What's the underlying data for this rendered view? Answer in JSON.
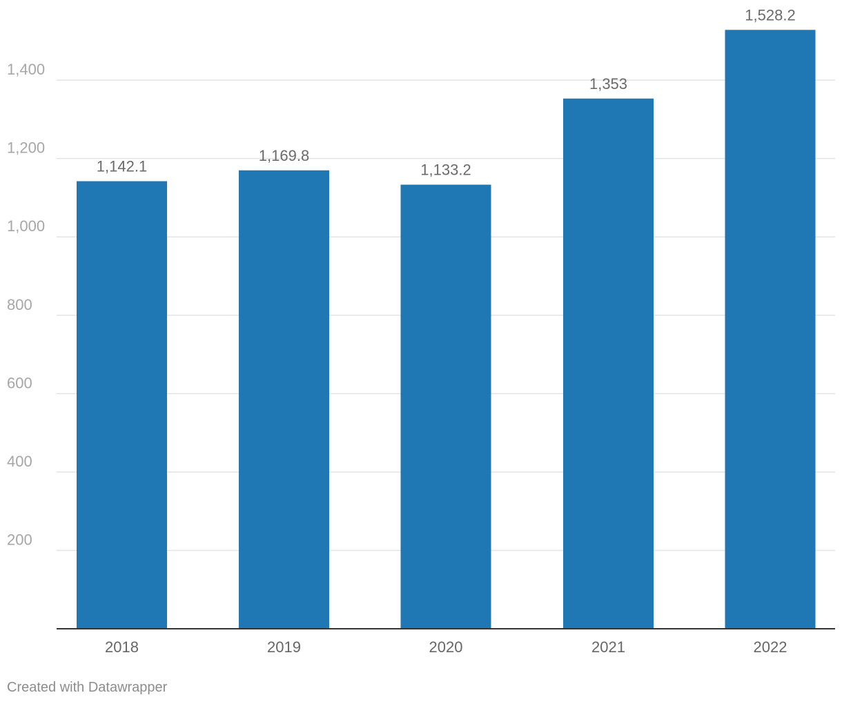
{
  "chart_data": {
    "type": "bar",
    "categories": [
      "2018",
      "2019",
      "2020",
      "2021",
      "2022"
    ],
    "values": [
      1142.1,
      1169.8,
      1133.2,
      1353,
      1528.2
    ],
    "value_labels": [
      "1,142.1",
      "1,169.8",
      "1,133.2",
      "1,353",
      "1,528.2"
    ],
    "yticks": [
      200,
      400,
      600,
      800,
      1000,
      1200,
      1400
    ],
    "ytick_labels": [
      "200",
      "400",
      "600",
      "800",
      "1,000",
      "1,200",
      "1,400"
    ],
    "ylim": [
      0,
      1528.2
    ],
    "grid": true,
    "bar_color": "#1f77b4"
  },
  "footer": {
    "credit": "Created with Datawrapper"
  }
}
